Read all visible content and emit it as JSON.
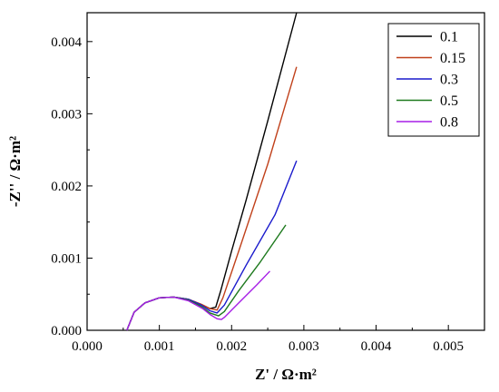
{
  "chart_data": {
    "type": "line",
    "title": "",
    "xlabel": "Z' / Ω·m²",
    "ylabel": "-Z'' / Ω·m²",
    "xlim": [
      0.0,
      0.0055
    ],
    "ylim": [
      0.0,
      0.0044
    ],
    "xticks": [
      "0.000",
      "0.001",
      "0.002",
      "0.003",
      "0.004",
      "0.005"
    ],
    "yticks": [
      "0.000",
      "0.001",
      "0.002",
      "0.003",
      "0.004"
    ],
    "grid": false,
    "legend_position": "top-right",
    "series": [
      {
        "name": "0.1",
        "color": "#000000",
        "points": [
          [
            0.00055,
            0.0
          ],
          [
            0.00065,
            0.00025
          ],
          [
            0.0008,
            0.00038
          ],
          [
            0.001,
            0.00045
          ],
          [
            0.0012,
            0.00046
          ],
          [
            0.0014,
            0.00043
          ],
          [
            0.00158,
            0.00036
          ],
          [
            0.0017,
            0.0003
          ],
          [
            0.00178,
            0.00032
          ],
          [
            0.00185,
            0.00055
          ],
          [
            0.002,
            0.0011
          ],
          [
            0.0022,
            0.0018
          ],
          [
            0.0025,
            0.0029
          ],
          [
            0.0029,
            0.0044
          ]
        ]
      },
      {
        "name": "0.15",
        "color": "#c0401a",
        "points": [
          [
            0.00055,
            0.0
          ],
          [
            0.00065,
            0.00025
          ],
          [
            0.0008,
            0.00038
          ],
          [
            0.001,
            0.00045
          ],
          [
            0.0012,
            0.00046
          ],
          [
            0.0014,
            0.00043
          ],
          [
            0.00158,
            0.00036
          ],
          [
            0.0017,
            0.0003
          ],
          [
            0.0018,
            0.00028
          ],
          [
            0.00188,
            0.00045
          ],
          [
            0.0021,
            0.0011
          ],
          [
            0.0025,
            0.0023
          ],
          [
            0.0029,
            0.00365
          ]
        ]
      },
      {
        "name": "0.3",
        "color": "#1a1acc",
        "points": [
          [
            0.00055,
            0.0
          ],
          [
            0.00065,
            0.00025
          ],
          [
            0.0008,
            0.00038
          ],
          [
            0.001,
            0.00045
          ],
          [
            0.0012,
            0.00046
          ],
          [
            0.0014,
            0.00043
          ],
          [
            0.00158,
            0.00035
          ],
          [
            0.0017,
            0.00027
          ],
          [
            0.0018,
            0.00024
          ],
          [
            0.0019,
            0.00035
          ],
          [
            0.0022,
            0.0009
          ],
          [
            0.0026,
            0.0016
          ],
          [
            0.0029,
            0.00235
          ]
        ]
      },
      {
        "name": "0.5",
        "color": "#1e7a1e",
        "points": [
          [
            0.00055,
            0.0
          ],
          [
            0.00065,
            0.00025
          ],
          [
            0.0008,
            0.00038
          ],
          [
            0.001,
            0.00045
          ],
          [
            0.0012,
            0.00046
          ],
          [
            0.0014,
            0.00042
          ],
          [
            0.00158,
            0.00033
          ],
          [
            0.0017,
            0.00024
          ],
          [
            0.00182,
            0.0002
          ],
          [
            0.0019,
            0.00026
          ],
          [
            0.0021,
            0.00055
          ],
          [
            0.0024,
            0.00095
          ],
          [
            0.00275,
            0.00146
          ]
        ]
      },
      {
        "name": "0.8",
        "color": "#a61ee6",
        "points": [
          [
            0.00055,
            0.0
          ],
          [
            0.00065,
            0.00025
          ],
          [
            0.0008,
            0.00038
          ],
          [
            0.001,
            0.00045
          ],
          [
            0.0012,
            0.00046
          ],
          [
            0.0014,
            0.00041
          ],
          [
            0.0016,
            0.0003
          ],
          [
            0.0017,
            0.00022
          ],
          [
            0.0018,
            0.00016
          ],
          [
            0.00186,
            0.00015
          ],
          [
            0.0019,
            0.00018
          ],
          [
            0.0021,
            0.00038
          ],
          [
            0.00235,
            0.00063
          ],
          [
            0.00253,
            0.00082
          ]
        ]
      }
    ]
  }
}
